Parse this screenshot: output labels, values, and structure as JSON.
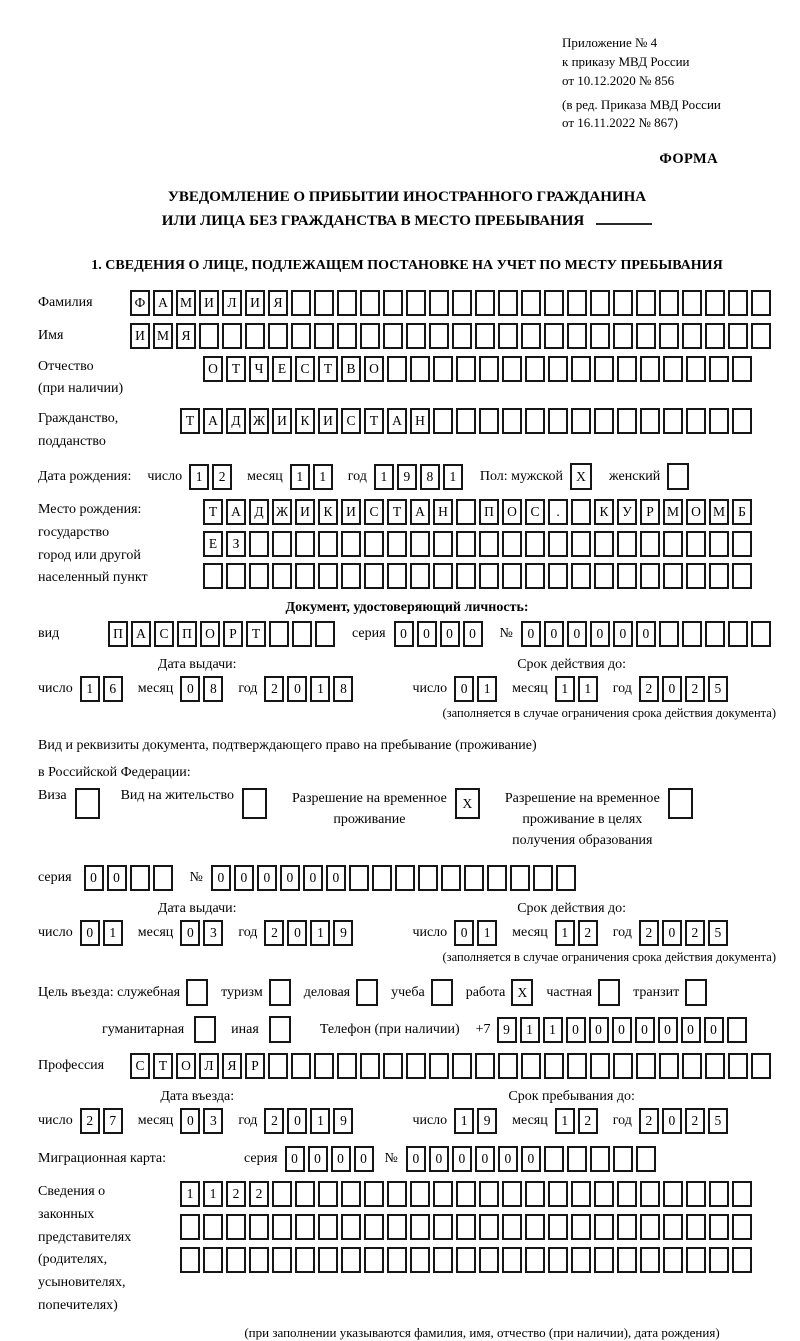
{
  "header": {
    "ref_lines": [
      "Приложение № 4",
      "к приказу МВД России",
      "от 10.12.2020 № 856",
      "(в ред. Приказа МВД России",
      "от 16.11.2022 № 867)"
    ],
    "forma": "ФОРМА"
  },
  "title": {
    "line1": "УВЕДОМЛЕНИЕ О ПРИБЫТИИ ИНОСТРАННОГО ГРАЖДАНИНА",
    "line2": "ИЛИ ЛИЦА БЕЗ ГРАЖДАНСТВА В МЕСТО ПРЕБЫВАНИЯ"
  },
  "section1_heading": "1. СВЕДЕНИЯ О ЛИЦЕ, ПОДЛЕЖАЩЕМ ПОСТАНОВКЕ НА УЧЕТ ПО МЕСТУ ПРЕБЫВАНИЯ",
  "labels": {
    "surname": "Фамилия",
    "name": "Имя",
    "patronymic": "Отчество\n(при наличии)",
    "citizenship": "Гражданство,\nподданство",
    "birthdate": "Дата рождения:",
    "day": "число",
    "month": "месяц",
    "year": "год",
    "sex_male": "Пол: мужской",
    "sex_female": "женский",
    "birthplace": "Место рождения:\nгосударство\nгород или другой\nнаселенный пункт",
    "id_doc_heading": "Документ, удостоверяющий личность:",
    "doc_type": "вид",
    "series": "серия",
    "number": "№",
    "issue_date": "Дата выдачи:",
    "valid_until": "Срок действия до:",
    "valid_note": "(заполняется в случае ограничения срока действия документа)",
    "resid_doc_line1": "Вид и реквизиты документа, подтверждающего право на пребывание (проживание)",
    "resid_doc_line2": "в Российской Федерации:",
    "visa": "Виза",
    "residence_permit": "Вид на жительство",
    "temp_residence": "Разрешение на временное\nпроживание",
    "temp_residence_edu": "Разрешение на временное\nпроживание в целях\nполучения образования",
    "purpose": "Цель въезда: служебная",
    "tourism": "туризм",
    "business": "деловая",
    "study": "учеба",
    "work": "работа",
    "private": "частная",
    "transit": "транзит",
    "humanitarian": "гуманитарная",
    "other": "иная",
    "phone": "Телефон (при наличии)",
    "phone_prefix": "+7",
    "profession": "Профессия",
    "entry_date": "Дата въезда:",
    "stay_until": "Срок пребывания до:",
    "migration_card": "Миграционная карта:",
    "representatives": "Сведения о\nзаконных\nпредставителях\n(родителях,\nусыновителях,\nпопечителях)",
    "representatives_note": "(при заполнении указываются фамилия, имя, отчество (при наличии), дата рождения)"
  },
  "values": {
    "surname": "ФАМИЛИЯ",
    "given_name": "ИМЯ",
    "patronymic": "ОТЧЕСТВО",
    "citizenship": "ТАДЖИКИСТАН",
    "birth_day": "12",
    "birth_month": "11",
    "birth_year": "1981",
    "sex_male": "X",
    "sex_female": "",
    "birthplace_row1": "ТАДЖИКИСТАН ПОС. КУРМОМБ",
    "birthplace_row2": "ЕЗ",
    "birthplace_row3": "",
    "doc_type": "ПАСПОРТ",
    "doc_series": "0000",
    "doc_number": "000000",
    "doc_issue_day": "16",
    "doc_issue_month": "08",
    "doc_issue_year": "2018",
    "doc_valid_day": "01",
    "doc_valid_month": "11",
    "doc_valid_year": "2025",
    "visa": "",
    "residence_permit": "",
    "temp_residence": "X",
    "temp_residence_edu": "",
    "resid_series": "00",
    "resid_number": "000000",
    "resid_issue_day": "01",
    "resid_issue_month": "03",
    "resid_issue_year": "2019",
    "resid_valid_day": "01",
    "resid_valid_month": "12",
    "resid_valid_year": "2025",
    "purpose_official": "",
    "purpose_tourism": "",
    "purpose_business": "",
    "purpose_study": "",
    "purpose_work": "X",
    "purpose_private": "",
    "purpose_transit": "",
    "purpose_humanitarian": "",
    "purpose_other": "",
    "phone": "9110000000",
    "profession": "СТОЛЯР",
    "entry_day": "27",
    "entry_month": "03",
    "entry_year": "2019",
    "stay_day": "19",
    "stay_month": "12",
    "stay_year": "2025",
    "migr_series": "0000",
    "migr_number": "000000",
    "rep_row1": "1122",
    "rep_row2": "",
    "rep_row3": ""
  }
}
